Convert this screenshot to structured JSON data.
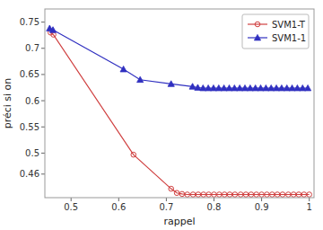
{
  "chart_data": {
    "type": "line",
    "xlabel": "rappel",
    "ylabel": "préci si on",
    "xlim": [
      0.445,
      1.01
    ],
    "ylim": [
      0.415,
      0.775
    ],
    "xticks": [
      0.5,
      0.6,
      0.7,
      0.8,
      0.9,
      1
    ],
    "yticks": [
      0.46,
      0.5,
      0.55,
      0.6,
      0.65,
      0.7,
      0.75
    ],
    "grid": false,
    "legend": "upper right",
    "series": [
      {
        "name": "SVM1-T",
        "color": "#d04040",
        "marker": "circle",
        "line_style": "solid",
        "x": [
          0.457,
          0.463,
          0.631,
          0.71,
          0.722,
          0.733,
          0.744,
          0.756,
          0.767,
          0.778,
          0.789,
          0.8,
          0.811,
          0.822,
          0.833,
          0.844,
          0.856,
          0.867,
          0.878,
          0.889,
          0.9,
          0.911,
          0.922,
          0.933,
          0.944,
          0.956,
          0.967,
          0.978,
          0.989,
          1.0
        ],
        "values": [
          0.73,
          0.726,
          0.497,
          0.432,
          0.424,
          0.422,
          0.421,
          0.421,
          0.421,
          0.421,
          0.421,
          0.421,
          0.421,
          0.421,
          0.421,
          0.421,
          0.421,
          0.421,
          0.421,
          0.421,
          0.421,
          0.421,
          0.421,
          0.421,
          0.421,
          0.421,
          0.421,
          0.421,
          0.421,
          0.421
        ]
      },
      {
        "name": "SVM1-1",
        "color": "#3030c0",
        "marker": "triangle",
        "line_style": "solid",
        "x": [
          0.455,
          0.462,
          0.61,
          0.645,
          0.71,
          0.755,
          0.766,
          0.777,
          0.788,
          0.799,
          0.81,
          0.821,
          0.832,
          0.843,
          0.854,
          0.865,
          0.876,
          0.887,
          0.898,
          0.909,
          0.92,
          0.931,
          0.942,
          0.953,
          0.964,
          0.975,
          0.986,
          0.997
        ],
        "values": [
          0.738,
          0.735,
          0.66,
          0.64,
          0.632,
          0.627,
          0.625,
          0.624,
          0.624,
          0.624,
          0.624,
          0.624,
          0.624,
          0.624,
          0.624,
          0.624,
          0.624,
          0.624,
          0.624,
          0.624,
          0.624,
          0.624,
          0.624,
          0.624,
          0.624,
          0.624,
          0.624,
          0.624
        ]
      }
    ]
  }
}
